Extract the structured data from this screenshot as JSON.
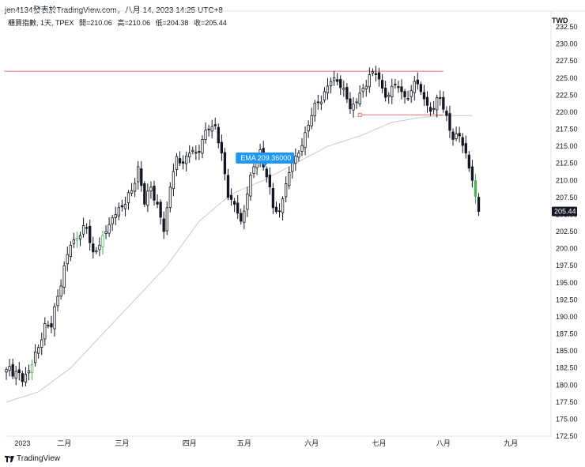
{
  "header": {
    "title": "jen4134發表於TradingView.com，八月 14, 2023 14:25 UTC+8"
  },
  "symbol": {
    "name": "櫃買指數, 1天, TPEX",
    "open": "開=210.06",
    "high": "高=210.06",
    "low": "低=204.38",
    "close": "收=205.44"
  },
  "currency": "TWD",
  "footer": {
    "logo_text": "TradingView",
    "logo_icon": "tradingview-logo-icon"
  },
  "chart_data": {
    "type": "candlestick",
    "y_ticks": [
      172.5,
      175,
      177.5,
      180,
      182.5,
      185,
      187.5,
      190,
      192.5,
      195,
      197.5,
      200,
      202.5,
      205,
      207.5,
      210,
      212.5,
      215,
      217.5,
      220,
      222.5,
      225,
      227.5,
      230,
      232.5
    ],
    "y_tick_labels": [
      "172.50",
      "175.00",
      "177.50",
      "180.00",
      "182.50",
      "185.00",
      "187.50",
      "190.00",
      "192.50",
      "195.00",
      "197.50",
      "200.00",
      "202.50",
      "205.00",
      "207.50",
      "210.00",
      "212.50",
      "215.00",
      "217.50",
      "220.00",
      "222.50",
      "225.00",
      "227.50",
      "230.00",
      "232.50"
    ],
    "ylim": [
      172.5,
      232.5
    ],
    "x_labels": [
      {
        "label": "2023",
        "index": 5
      },
      {
        "label": "二月",
        "index": 18
      },
      {
        "label": "三月",
        "index": 36
      },
      {
        "label": "四月",
        "index": 57
      },
      {
        "label": "五月",
        "index": 74
      },
      {
        "label": "六月",
        "index": 95
      },
      {
        "label": "七月",
        "index": 116
      },
      {
        "label": "八月",
        "index": 136
      },
      {
        "label": "九月",
        "index": 157
      }
    ],
    "last_price": 205.44,
    "last_price_label": "205.44",
    "ema_label": "EMA 209.36000",
    "ema_label_index": 80,
    "resistance_level": 226.0,
    "resistance_range": [
      0,
      136
    ],
    "support_level": 219.6,
    "support_range": [
      110,
      136
    ],
    "colors": {
      "up": "#ffffff",
      "up_border": "#131722",
      "down": "#131722",
      "line_red": "#e57373",
      "ema": "#c9c9c9",
      "ema_tag": "#2196f3",
      "badge": "#131722",
      "green_candle": "#4caf50"
    },
    "anchor_closes": [
      [
        0,
        182.3
      ],
      [
        3,
        182.0
      ],
      [
        5,
        180.5
      ],
      [
        8,
        183.0
      ],
      [
        10,
        185.5
      ],
      [
        12,
        189.0
      ],
      [
        14,
        188.5
      ],
      [
        16,
        193.0
      ],
      [
        18,
        197.5
      ],
      [
        20,
        200.5
      ],
      [
        22,
        201.5
      ],
      [
        25,
        203.0
      ],
      [
        27,
        199.5
      ],
      [
        29,
        200.5
      ],
      [
        31,
        202.5
      ],
      [
        33,
        204.5
      ],
      [
        35,
        206.0
      ],
      [
        37,
        206.5
      ],
      [
        39,
        208.5
      ],
      [
        41,
        212.0
      ],
      [
        43,
        206.5
      ],
      [
        45,
        209.0
      ],
      [
        47,
        206.5
      ],
      [
        49,
        202.5
      ],
      [
        51,
        209.0
      ],
      [
        53,
        213.5
      ],
      [
        55,
        212.5
      ],
      [
        57,
        214.0
      ],
      [
        59,
        214.0
      ],
      [
        61,
        216.0
      ],
      [
        63,
        217.5
      ],
      [
        65,
        218.0
      ],
      [
        67,
        214.0
      ],
      [
        69,
        207.5
      ],
      [
        71,
        206.5
      ],
      [
        73,
        204.0
      ],
      [
        75,
        208.0
      ],
      [
        77,
        212.0
      ],
      [
        79,
        214.5
      ],
      [
        81,
        210.5
      ],
      [
        83,
        206.0
      ],
      [
        85,
        205.5
      ],
      [
        87,
        209.5
      ],
      [
        89,
        212.5
      ],
      [
        91,
        214.0
      ],
      [
        93,
        217.0
      ],
      [
        95,
        219.5
      ],
      [
        97,
        221.5
      ],
      [
        99,
        223.0
      ],
      [
        101,
        224.5
      ],
      [
        103,
        224.5
      ],
      [
        105,
        223.5
      ],
      [
        107,
        220.5
      ],
      [
        109,
        221.5
      ],
      [
        111,
        223.5
      ],
      [
        113,
        225.5
      ],
      [
        115,
        225.5
      ],
      [
        117,
        223.5
      ],
      [
        119,
        222.5
      ],
      [
        121,
        224.0
      ],
      [
        123,
        223.0
      ],
      [
        125,
        222.0
      ],
      [
        127,
        224.5
      ],
      [
        129,
        223.0
      ],
      [
        131,
        221.0
      ],
      [
        133,
        220.5
      ],
      [
        135,
        222.0
      ],
      [
        137,
        219.5
      ],
      [
        139,
        216.0
      ],
      [
        141,
        216.5
      ],
      [
        143,
        214.0
      ],
      [
        145,
        210.0
      ],
      [
        147,
        205.44
      ]
    ],
    "ema_anchors": [
      [
        0,
        177.5
      ],
      [
        10,
        179.0
      ],
      [
        20,
        182.5
      ],
      [
        30,
        187.5
      ],
      [
        40,
        192.5
      ],
      [
        50,
        197.5
      ],
      [
        60,
        204.0
      ],
      [
        70,
        208.0
      ],
      [
        80,
        210.0
      ],
      [
        90,
        212.5
      ],
      [
        100,
        215.0
      ],
      [
        110,
        216.5
      ],
      [
        120,
        218.5
      ],
      [
        130,
        219.3
      ],
      [
        136,
        219.5
      ],
      [
        145,
        219.5
      ]
    ],
    "green_candle_indices": [
      8,
      22,
      30,
      146
    ]
  }
}
